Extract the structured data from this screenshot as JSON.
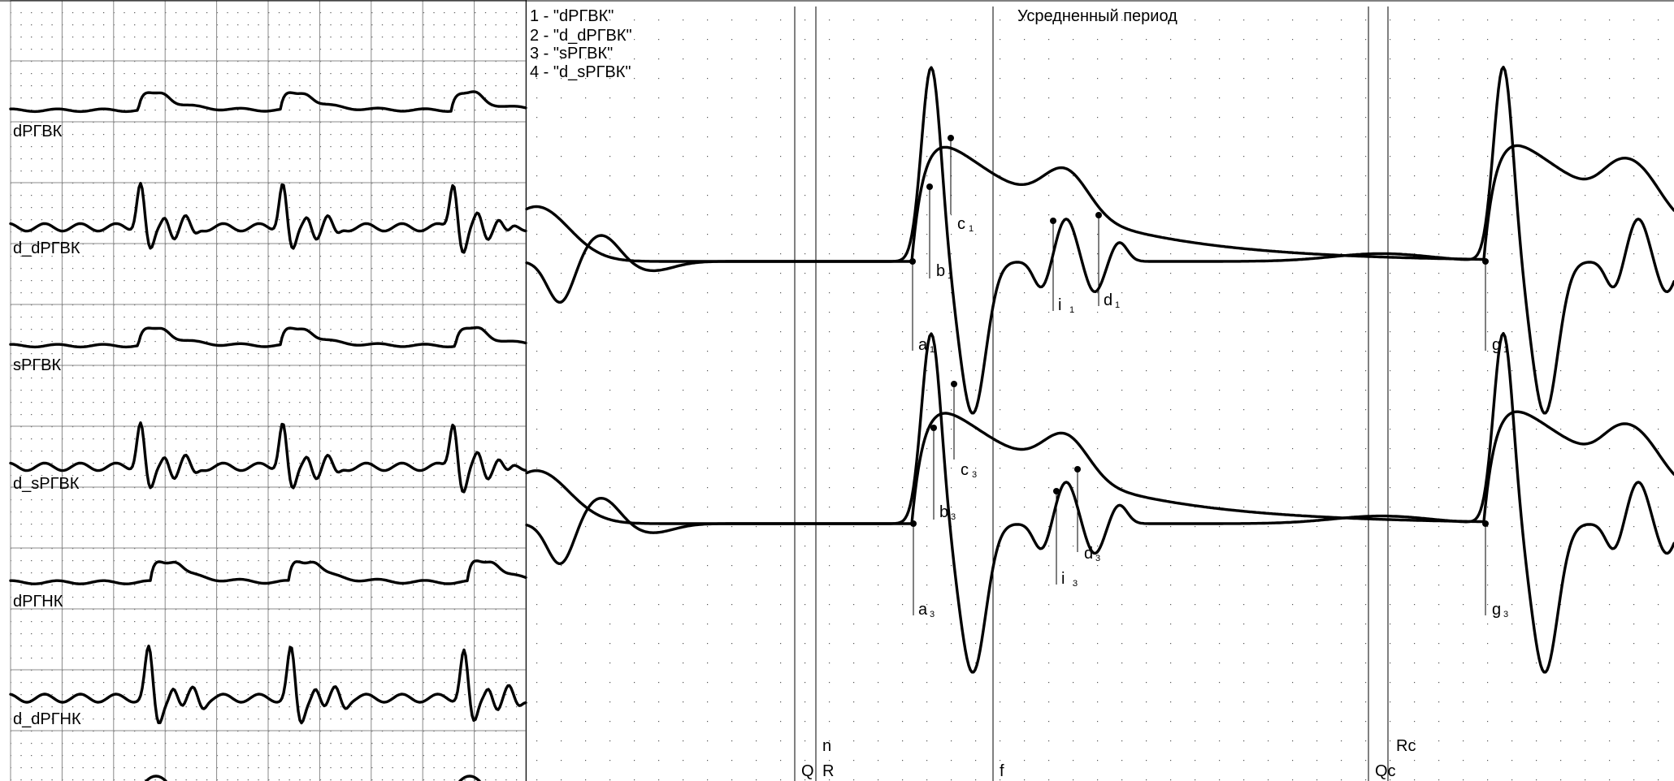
{
  "chart_data": {
    "type": "line",
    "left_panel": {
      "channel_labels": [
        "dРГВК",
        "d_dРГВК",
        "sРГВК",
        "d_sРГВК",
        "dРГНК",
        "d_dРГНК"
      ]
    },
    "right_panel": {
      "title": "Усредненный период",
      "legend": [
        "1 - \"dРГВК\"",
        "2 - \"d_dРГВК\"",
        "3 - \"sРГВК\"",
        "4 - \"d_sРГВК\""
      ],
      "legend_placement": "top-left",
      "vertical_markers": [
        {
          "label": "Q"
        },
        {
          "label": "R",
          "extra": "n"
        },
        {
          "label": "f"
        },
        {
          "label": "Qc"
        },
        {
          "label": "Rc"
        }
      ],
      "upper_points": [
        {
          "letter": "a",
          "sub": "1"
        },
        {
          "letter": "b",
          "sub": "1"
        },
        {
          "letter": "c",
          "sub": "1"
        },
        {
          "letter": "i",
          "sub": "1"
        },
        {
          "letter": "d",
          "sub": "1"
        },
        {
          "letter": "g",
          "sub": "1"
        }
      ],
      "lower_points": [
        {
          "letter": "a",
          "sub": "3"
        },
        {
          "letter": "b",
          "sub": "3"
        },
        {
          "letter": "c",
          "sub": "3"
        },
        {
          "letter": "i",
          "sub": "3"
        },
        {
          "letter": "d",
          "sub": "3"
        },
        {
          "letter": "g",
          "sub": "3"
        }
      ]
    },
    "grid": true
  }
}
